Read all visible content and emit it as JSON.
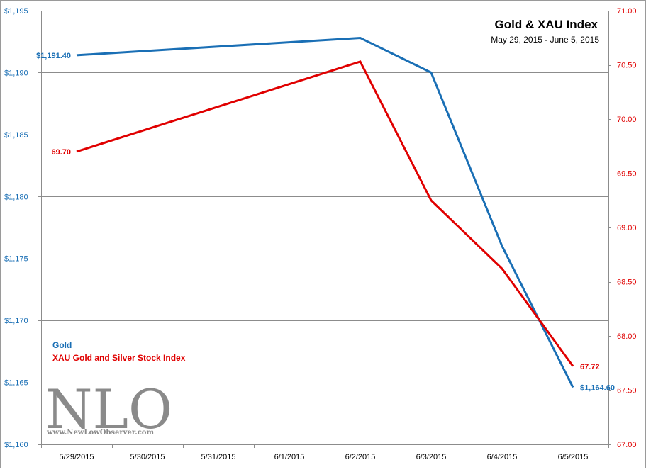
{
  "chart_data": {
    "type": "line",
    "title": "Gold  & XAU Index",
    "subtitle": "May 29, 2015  - June 5, 2015",
    "categories": [
      "5/29/2015",
      "5/30/2015",
      "5/31/2015",
      "6/1/2015",
      "6/2/2015",
      "6/3/2015",
      "6/4/2015",
      "6/5/2015"
    ],
    "y_left": {
      "range": [
        1160,
        1195
      ],
      "ticks": [
        1160,
        1165,
        1170,
        1175,
        1180,
        1185,
        1190,
        1195
      ],
      "tick_labels": [
        "$1,160",
        "$1,165",
        "$1,170",
        "$1,175",
        "$1,180",
        "$1,185",
        "$1,190",
        "$1,195"
      ],
      "color": "#1a6fb5"
    },
    "y_right": {
      "range": [
        67.0,
        71.0
      ],
      "ticks": [
        67.0,
        67.5,
        68.0,
        68.5,
        69.0,
        69.5,
        70.0,
        70.5,
        71.0
      ],
      "tick_labels": [
        "67.00",
        "67.50",
        "68.00",
        "68.50",
        "69.00",
        "69.50",
        "70.00",
        "70.50",
        "71.00"
      ],
      "color": "#e00000"
    },
    "grid": true,
    "legend_position": "bottom-left",
    "series": [
      {
        "name": "Gold",
        "axis": "left",
        "color": "#1a6fb5",
        "points": [
          {
            "x": "5/29/2015",
            "y": 1191.4
          },
          {
            "x": "6/2/2015",
            "y": 1192.8
          },
          {
            "x": "6/3/2015",
            "y": 1190.0
          },
          {
            "x": "6/4/2015",
            "y": 1176.0
          },
          {
            "x": "6/5/2015",
            "y": 1164.6
          }
        ],
        "labels": [
          {
            "x": "5/29/2015",
            "text": "$1,191.40",
            "side": "left"
          },
          {
            "x": "6/5/2015",
            "text": "$1,164.60",
            "side": "right"
          }
        ]
      },
      {
        "name": "XAU Gold and Silver Stock Index",
        "axis": "right",
        "color": "#e00000",
        "points": [
          {
            "x": "5/29/2015",
            "y": 69.7
          },
          {
            "x": "6/2/2015",
            "y": 70.53
          },
          {
            "x": "6/3/2015",
            "y": 69.25
          },
          {
            "x": "6/4/2015",
            "y": 68.62
          },
          {
            "x": "6/5/2015",
            "y": 67.72
          }
        ],
        "labels": [
          {
            "x": "5/29/2015",
            "text": "69.70",
            "side": "left"
          },
          {
            "x": "6/5/2015",
            "text": "67.72",
            "side": "right"
          }
        ]
      }
    ]
  },
  "watermark": {
    "logo_text": "NLO",
    "site_text": "www.NewLowObserver.com",
    "color": "#8a8a8a"
  }
}
